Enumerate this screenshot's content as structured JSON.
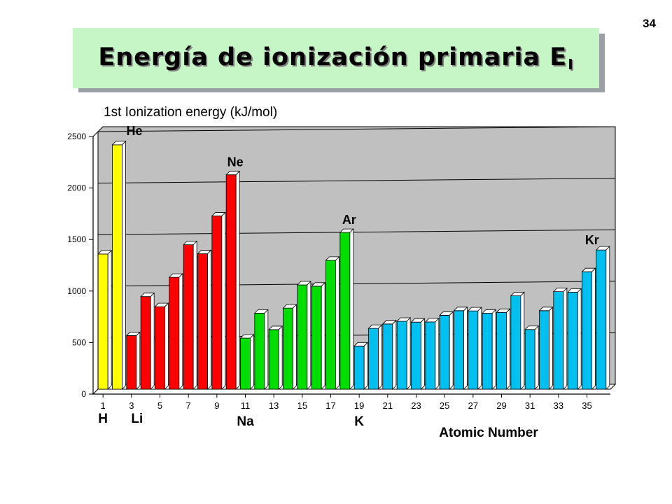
{
  "page": {
    "number": "34"
  },
  "slide_title": {
    "main": "Energía de ionización primaria E",
    "subscript": "I"
  },
  "chart_data": {
    "type": "bar",
    "title": "1st Ionization energy (kJ/mol)",
    "xlabel": "Atomic Number",
    "ylabel": "",
    "ylim": [
      0,
      2500
    ],
    "yticks": [
      0,
      500,
      1000,
      1500,
      2000,
      2500
    ],
    "grid": true,
    "background": "#c0c0c0",
    "x": [
      1,
      2,
      3,
      4,
      5,
      6,
      7,
      8,
      9,
      10,
      11,
      12,
      13,
      14,
      15,
      16,
      17,
      18,
      19,
      20,
      21,
      22,
      23,
      24,
      25,
      26,
      27,
      28,
      29,
      30,
      31,
      32,
      33,
      34,
      35,
      36
    ],
    "xtick_labels": [
      "1",
      "3",
      "5",
      "7",
      "9",
      "11",
      "13",
      "15",
      "17",
      "19",
      "21",
      "23",
      "25",
      "27",
      "29",
      "31",
      "33",
      "35"
    ],
    "values": [
      1312,
      2372,
      520,
      899,
      801,
      1086,
      1402,
      1314,
      1681,
      2081,
      496,
      738,
      578,
      787,
      1012,
      1000,
      1251,
      1521,
      419,
      590,
      633,
      659,
      651,
      653,
      717,
      762,
      760,
      737,
      745,
      906,
      579,
      762,
      947,
      941,
      1140,
      1351
    ],
    "group_colors": {
      "yellow": "#ffff00",
      "red": "#ff0000",
      "green": "#00dd00",
      "blue": "#00c0f0"
    },
    "bar_groups": [
      "yellow",
      "yellow",
      "red",
      "red",
      "red",
      "red",
      "red",
      "red",
      "red",
      "red",
      "green",
      "green",
      "green",
      "green",
      "green",
      "green",
      "green",
      "green",
      "blue",
      "blue",
      "blue",
      "blue",
      "blue",
      "blue",
      "blue",
      "blue",
      "blue",
      "blue",
      "blue",
      "blue",
      "blue",
      "blue",
      "blue",
      "blue",
      "blue",
      "blue"
    ],
    "annotations": [
      {
        "label": "He",
        "x": 2
      },
      {
        "label": "Ne",
        "x": 10
      },
      {
        "label": "Ar",
        "x": 18
      },
      {
        "label": "Kr",
        "x": 36
      }
    ],
    "element_labels": [
      {
        "label": "H",
        "x": 1
      },
      {
        "label": "Li",
        "x": 3
      },
      {
        "label": "Na",
        "x": 11
      },
      {
        "label": "K",
        "x": 19
      }
    ]
  }
}
